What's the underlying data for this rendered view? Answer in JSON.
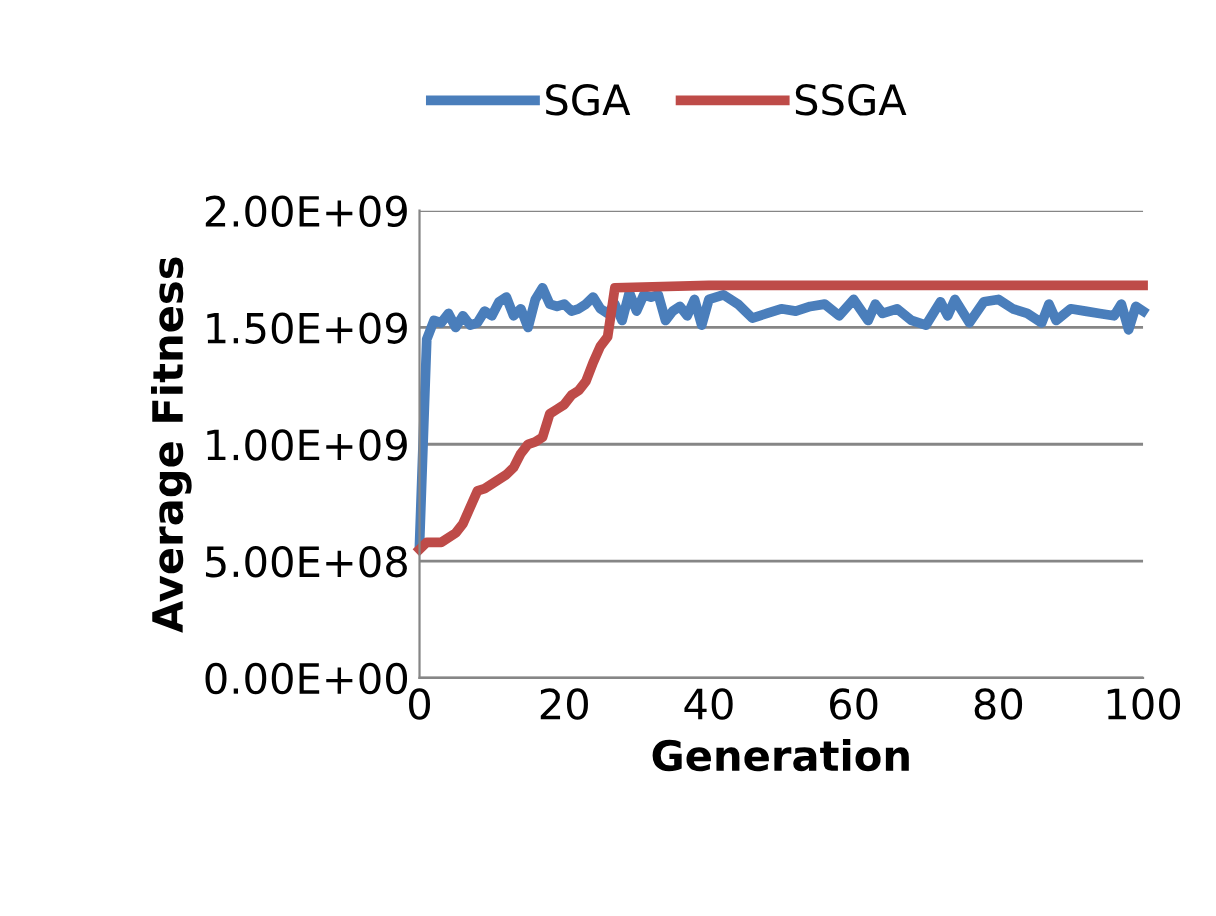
{
  "chart_data": {
    "type": "line",
    "xlabel": "Generation",
    "ylabel": "Average Fitness",
    "xlim": [
      0,
      100
    ],
    "xticks": [
      0,
      20,
      40,
      60,
      80,
      100
    ],
    "ylim": [
      0,
      2000000000
    ],
    "yticks": [
      {
        "value": 0,
        "label": "0.00E+00"
      },
      {
        "value": 500000000,
        "label": "5.00E+08"
      },
      {
        "value": 1000000000,
        "label": "1.00E+09"
      },
      {
        "value": 1500000000,
        "label": "1.50E+09"
      },
      {
        "value": 2000000000,
        "label": "2.00E+09"
      }
    ],
    "grid": "y",
    "legend": "top",
    "marker": "none",
    "line_style": "solid",
    "series": [
      {
        "name": "SGA",
        "color": "#4a7ebb",
        "x": [
          0,
          1,
          2,
          3,
          4,
          5,
          6,
          7,
          8,
          9,
          10,
          11,
          12,
          13,
          14,
          15,
          16,
          17,
          18,
          19,
          20,
          21,
          22,
          23,
          24,
          25,
          26,
          27,
          28,
          29,
          30,
          31,
          32,
          33,
          34,
          35,
          36,
          37,
          38,
          39,
          40,
          42,
          44,
          46,
          48,
          50,
          52,
          54,
          56,
          58,
          60,
          62,
          63,
          64,
          66,
          68,
          70,
          72,
          73,
          74,
          76,
          78,
          80,
          82,
          84,
          86,
          87,
          88,
          90,
          92,
          94,
          96,
          97,
          98,
          99,
          100
        ],
        "values": [
          570000000,
          1450000000,
          1530000000,
          1520000000,
          1560000000,
          1500000000,
          1550000000,
          1510000000,
          1520000000,
          1570000000,
          1550000000,
          1610000000,
          1630000000,
          1550000000,
          1580000000,
          1500000000,
          1620000000,
          1670000000,
          1600000000,
          1590000000,
          1600000000,
          1570000000,
          1580000000,
          1600000000,
          1630000000,
          1580000000,
          1560000000,
          1600000000,
          1530000000,
          1650000000,
          1570000000,
          1640000000,
          1630000000,
          1640000000,
          1530000000,
          1570000000,
          1590000000,
          1550000000,
          1620000000,
          1510000000,
          1620000000,
          1640000000,
          1600000000,
          1540000000,
          1560000000,
          1580000000,
          1570000000,
          1590000000,
          1600000000,
          1550000000,
          1620000000,
          1530000000,
          1600000000,
          1560000000,
          1580000000,
          1530000000,
          1510000000,
          1610000000,
          1550000000,
          1620000000,
          1520000000,
          1610000000,
          1620000000,
          1580000000,
          1560000000,
          1520000000,
          1600000000,
          1530000000,
          1580000000,
          1570000000,
          1560000000,
          1550000000,
          1600000000,
          1490000000,
          1590000000,
          1570000000
        ]
      },
      {
        "name": "SSGA",
        "color": "#be4b48",
        "x": [
          0,
          1,
          3,
          5,
          6,
          8,
          9,
          12,
          13,
          14,
          15,
          16,
          17,
          18,
          19,
          20,
          21,
          22,
          23,
          24,
          25,
          26,
          27,
          40,
          100
        ],
        "values": [
          550000000,
          580000000,
          580000000,
          620000000,
          660000000,
          800000000,
          810000000,
          870000000,
          900000000,
          960000000,
          1000000000,
          1010000000,
          1030000000,
          1130000000,
          1150000000,
          1170000000,
          1210000000,
          1230000000,
          1270000000,
          1350000000,
          1420000000,
          1460000000,
          1670000000,
          1680000000,
          1680000000
        ]
      }
    ]
  }
}
